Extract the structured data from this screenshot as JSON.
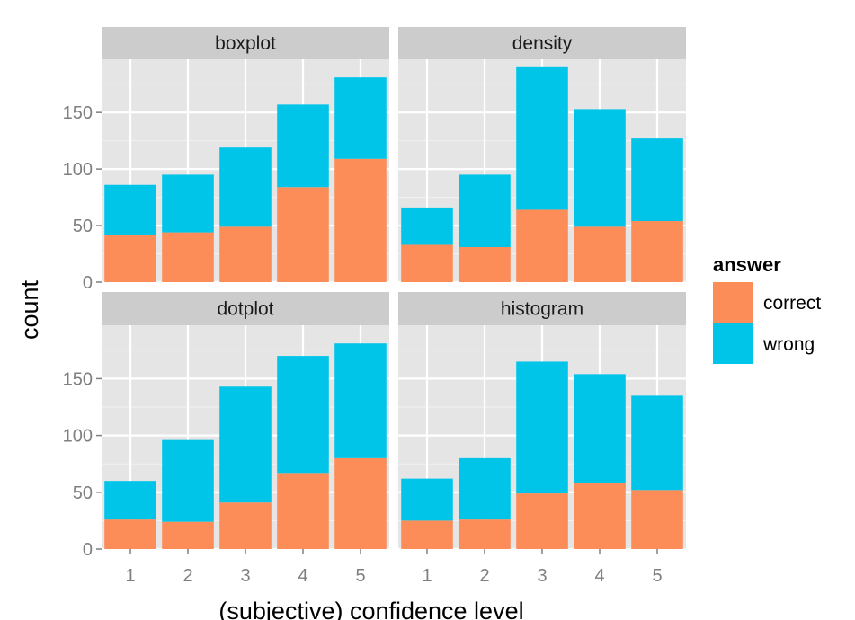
{
  "chart_data": {
    "type": "bar",
    "stacked": true,
    "xlabel": "(subjective) confidence level",
    "ylabel": "count",
    "categories": [
      "1",
      "2",
      "3",
      "4",
      "5"
    ],
    "y_ticks": [
      0,
      50,
      100,
      150
    ],
    "ylim": [
      0,
      197
    ],
    "grid": true,
    "legend": {
      "title": "answer",
      "position": "right",
      "entries": [
        {
          "label": "correct",
          "color": "#FC8D59"
        },
        {
          "label": "wrong",
          "color": "#00C5E8"
        }
      ]
    },
    "panels": [
      {
        "title": "boxplot",
        "series": [
          {
            "name": "correct",
            "values": [
              42,
              44,
              49,
              84,
              109
            ]
          },
          {
            "name": "wrong",
            "values": [
              44,
              51,
              70,
              73,
              72
            ]
          }
        ]
      },
      {
        "title": "density",
        "series": [
          {
            "name": "correct",
            "values": [
              33,
              31,
              64,
              49,
              54
            ]
          },
          {
            "name": "wrong",
            "values": [
              33,
              64,
              126,
              104,
              73
            ]
          }
        ]
      },
      {
        "title": "dotplot",
        "series": [
          {
            "name": "correct",
            "values": [
              26,
              24,
              41,
              67,
              80
            ]
          },
          {
            "name": "wrong",
            "values": [
              34,
              72,
              102,
              103,
              101
            ]
          }
        ]
      },
      {
        "title": "histogram",
        "series": [
          {
            "name": "correct",
            "values": [
              25,
              26,
              49,
              58,
              52
            ]
          },
          {
            "name": "wrong",
            "values": [
              37,
              54,
              116,
              96,
              83
            ]
          }
        ]
      }
    ]
  }
}
